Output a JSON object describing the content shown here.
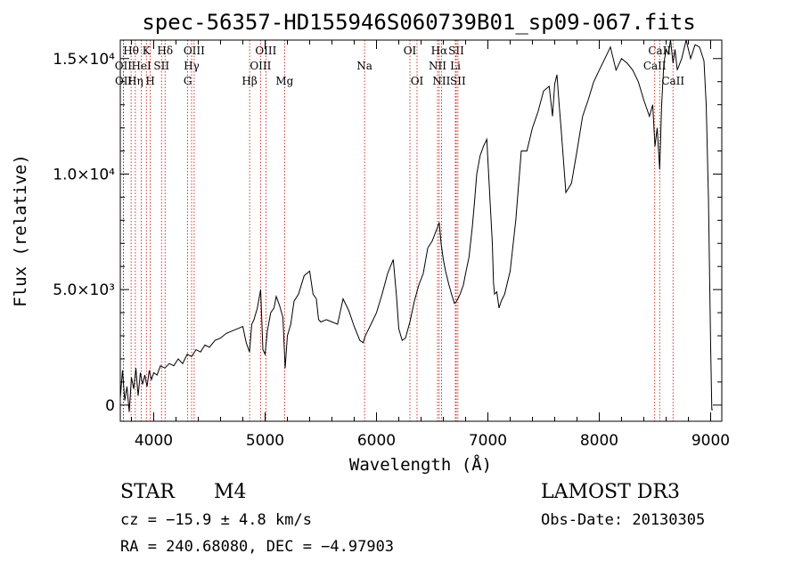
{
  "chart_data": {
    "type": "line",
    "title": "spec-56357-HD155946S060739B01_sp09-067.fits",
    "xlabel": "Wavelength (Å)",
    "ylabel": "Flux (relative)",
    "xlim": [
      3700,
      9100
    ],
    "ylim": [
      -700,
      15800
    ],
    "x_ticks": [
      {
        "value": 4000,
        "label": "4000"
      },
      {
        "value": 5000,
        "label": "5000"
      },
      {
        "value": 6000,
        "label": "6000"
      },
      {
        "value": 7000,
        "label": "7000"
      },
      {
        "value": 8000,
        "label": "8000"
      },
      {
        "value": 9000,
        "label": "9000"
      }
    ],
    "y_ticks": [
      {
        "value": 0,
        "label": "0"
      },
      {
        "value": 5000,
        "label": "5.0×10³"
      },
      {
        "value": 10000,
        "label": "1.0×10⁴"
      },
      {
        "value": 15000,
        "label": "1.5×10⁴"
      }
    ],
    "series": [
      {
        "name": "spectrum",
        "x": [
          3700,
          3720,
          3740,
          3760,
          3780,
          3800,
          3820,
          3840,
          3860,
          3880,
          3900,
          3920,
          3940,
          3960,
          3980,
          4000,
          4030,
          4060,
          4100,
          4140,
          4180,
          4220,
          4260,
          4300,
          4340,
          4380,
          4420,
          4460,
          4500,
          4550,
          4600,
          4650,
          4700,
          4750,
          4800,
          4830,
          4860,
          4880,
          4900,
          4930,
          4960,
          4980,
          5000,
          5020,
          5050,
          5080,
          5100,
          5130,
          5160,
          5180,
          5200,
          5230,
          5260,
          5300,
          5350,
          5400,
          5430,
          5460,
          5480,
          5500,
          5550,
          5600,
          5650,
          5700,
          5750,
          5800,
          5850,
          5880,
          5900,
          5920,
          5950,
          6000,
          6050,
          6100,
          6150,
          6180,
          6200,
          6230,
          6260,
          6300,
          6340,
          6380,
          6420,
          6460,
          6500,
          6540,
          6563,
          6580,
          6600,
          6620,
          6650,
          6680,
          6700,
          6720,
          6750,
          6780,
          6800,
          6830,
          6860,
          6880,
          6900,
          6930,
          6960,
          6990,
          7020,
          7040,
          7050,
          7060,
          7080,
          7100,
          7120,
          7150,
          7200,
          7250,
          7300,
          7350,
          7400,
          7450,
          7500,
          7550,
          7580,
          7600,
          7620,
          7640,
          7660,
          7680,
          7700,
          7750,
          7800,
          7850,
          7900,
          7950,
          8000,
          8050,
          8100,
          8150,
          8200,
          8250,
          8300,
          8350,
          8400,
          8450,
          8480,
          8500,
          8520,
          8542,
          8560,
          8580,
          8600,
          8620,
          8640,
          8662,
          8680,
          8700,
          8740,
          8780,
          8820,
          8860,
          8900,
          8940,
          8960,
          8980,
          9000,
          9010,
          9020
        ],
        "values": [
          300,
          1500,
          200,
          800,
          -300,
          1200,
          700,
          1600,
          400,
          1400,
          900,
          1300,
          800,
          1500,
          1100,
          1400,
          1300,
          1700,
          1600,
          1800,
          1700,
          2000,
          1800,
          2200,
          2100,
          2400,
          2300,
          2600,
          2500,
          2800,
          2900,
          3100,
          3200,
          3300,
          3400,
          2700,
          2300,
          3500,
          3700,
          4200,
          5000,
          2400,
          2200,
          3200,
          4000,
          4200,
          4700,
          4300,
          3800,
          1600,
          3000,
          3500,
          4500,
          4800,
          5600,
          5800,
          4800,
          4600,
          3700,
          3600,
          3700,
          3600,
          3500,
          4600,
          4100,
          3400,
          2800,
          2700,
          3000,
          3200,
          3500,
          4000,
          4800,
          5700,
          6300,
          4700,
          3300,
          2800,
          2900,
          3600,
          4500,
          5200,
          5700,
          6800,
          7100,
          7600,
          7900,
          7000,
          6300,
          5800,
          5200,
          4700,
          4400,
          4500,
          4800,
          5200,
          5700,
          6400,
          7700,
          8800,
          10000,
          10800,
          11200,
          11500,
          8800,
          7000,
          5300,
          4800,
          4900,
          4200,
          4500,
          4800,
          5800,
          8000,
          11000,
          11000,
          12000,
          12700,
          13600,
          13800,
          12500,
          13900,
          14300,
          13000,
          11800,
          10500,
          9200,
          9600,
          11000,
          12500,
          13200,
          14000,
          14500,
          15000,
          15500,
          14500,
          15000,
          14800,
          14500,
          14000,
          13200,
          12500,
          13000,
          11200,
          12000,
          10200,
          13000,
          14800,
          15400,
          15200,
          15800,
          14800,
          15400,
          14500,
          15000,
          15800,
          15000,
          15600,
          15500,
          14900,
          13000,
          9000,
          2500,
          -200,
          -200
        ]
      }
    ],
    "line_markers": [
      {
        "label": "Hθ",
        "x": 3797,
        "row": 1
      },
      {
        "label": "OII",
        "x": 3727,
        "row": 2
      },
      {
        "label": "OII",
        "x": 3729,
        "row": 3
      },
      {
        "label": "Hη",
        "x": 3835,
        "row": 3
      },
      {
        "label": "HeI",
        "x": 3889,
        "row": 2
      },
      {
        "label": "K",
        "x": 3934,
        "row": 1
      },
      {
        "label": "H",
        "x": 3969,
        "row": 3
      },
      {
        "label": "SII",
        "x": 4070,
        "row": 2
      },
      {
        "label": "Hδ",
        "x": 4102,
        "row": 1
      },
      {
        "label": "OIII",
        "x": 4363,
        "row": 1
      },
      {
        "label": "Hγ",
        "x": 4340,
        "row": 2
      },
      {
        "label": "G",
        "x": 4305,
        "row": 3
      },
      {
        "label": "Hβ",
        "x": 4861,
        "row": 3
      },
      {
        "label": "OIII",
        "x": 5007,
        "row": 1
      },
      {
        "label": "OIII",
        "x": 4959,
        "row": 2
      },
      {
        "label": "Mg",
        "x": 5175,
        "row": 3
      },
      {
        "label": "Na",
        "x": 5893,
        "row": 2
      },
      {
        "label": "OI",
        "x": 6300,
        "row": 1
      },
      {
        "label": "OI",
        "x": 6364,
        "row": 3
      },
      {
        "label": "Hα",
        "x": 6563,
        "row": 1
      },
      {
        "label": "NII",
        "x": 6548,
        "row": 2
      },
      {
        "label": "NII",
        "x": 6583,
        "row": 3
      },
      {
        "label": "SII",
        "x": 6716,
        "row": 1
      },
      {
        "label": "Li",
        "x": 6708,
        "row": 2
      },
      {
        "label": "SII",
        "x": 6731,
        "row": 3
      },
      {
        "label": "CaII",
        "x": 8542,
        "row": 1
      },
      {
        "label": "CaII",
        "x": 8498,
        "row": 2
      },
      {
        "label": "CaII",
        "x": 8662,
        "row": 3
      }
    ]
  },
  "info": {
    "object_class": "STAR",
    "subclass": "M4",
    "survey": "LAMOST DR3",
    "redshift": "cz = −15.9 ± 4.8 km/s",
    "obs_date": "Obs-Date: 20130305",
    "coords": "RA = 240.68080, DEC =  −4.97903"
  },
  "colors": {
    "line": "#000000",
    "marker": "#cc0000",
    "axis": "#000000"
  }
}
